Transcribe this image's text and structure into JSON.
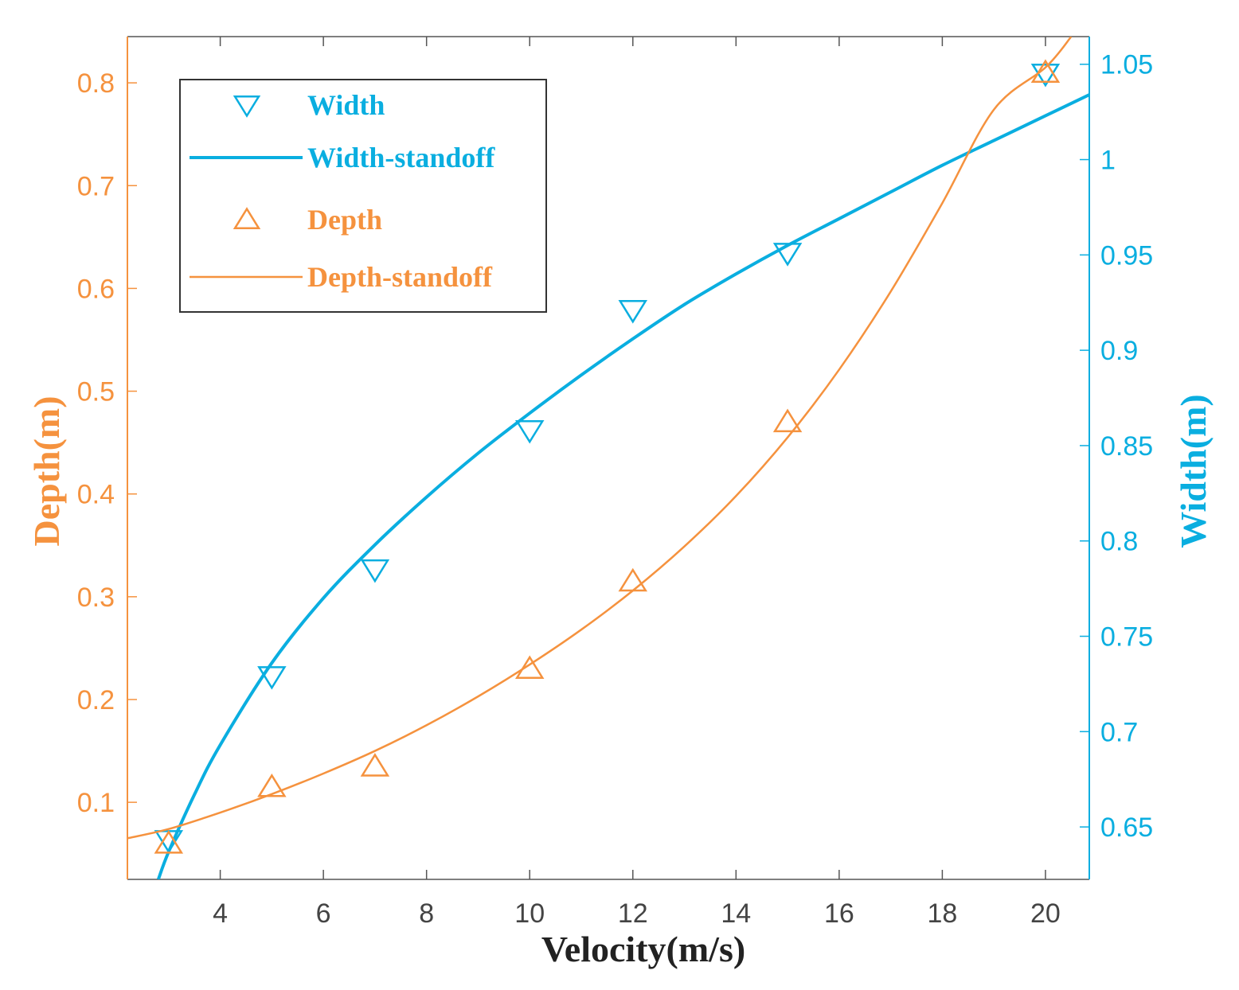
{
  "chart_data": {
    "type": "line",
    "xlabel": "Velocity(m/s)",
    "ylabel_left": "Depth(m)",
    "ylabel_right": "Width(m)",
    "xlim": [
      2.2,
      20.85
    ],
    "ylim_left": [
      0.025,
      0.845
    ],
    "ylim_right": [
      0.6225,
      1.0645
    ],
    "x_ticks": [
      4,
      6,
      8,
      10,
      12,
      14,
      16,
      18,
      20
    ],
    "y_left_ticks": [
      0.1,
      0.2,
      0.3,
      0.4,
      0.5,
      0.6,
      0.7,
      0.8
    ],
    "y_right_ticks": [
      0.65,
      0.7,
      0.75,
      0.8,
      0.85,
      0.9,
      0.95,
      1,
      1.05
    ],
    "series": [
      {
        "name": "Width",
        "kind": "markers",
        "marker": "triangle-down",
        "axis": "right",
        "x": [
          3,
          5,
          7,
          10,
          12,
          15,
          20
        ],
        "y": [
          0.643,
          0.729,
          0.785,
          0.858,
          0.921,
          0.951,
          1.045
        ]
      },
      {
        "name": "Width-standoff",
        "kind": "line",
        "axis": "right",
        "x": [
          2.8,
          3,
          3.5,
          4,
          5,
          6,
          7,
          8,
          9,
          10,
          11,
          12,
          13,
          14,
          15,
          16,
          17,
          18,
          19,
          20,
          20.85
        ],
        "y": [
          0.6225,
          0.637,
          0.667,
          0.693,
          0.736,
          0.77,
          0.798,
          0.823,
          0.846,
          0.867,
          0.887,
          0.906,
          0.924,
          0.94,
          0.955,
          0.969,
          0.983,
          0.997,
          1.01,
          1.023,
          1.034
        ]
      },
      {
        "name": "Depth",
        "kind": "markers",
        "marker": "triangle-up",
        "axis": "left",
        "x": [
          3,
          5,
          7,
          10,
          12,
          15,
          20
        ],
        "y": [
          0.06,
          0.115,
          0.135,
          0.23,
          0.315,
          0.47,
          0.81
        ]
      },
      {
        "name": "Depth-standoff",
        "kind": "line",
        "axis": "left",
        "x": [
          2.2,
          3,
          4,
          5,
          6,
          7,
          8,
          9,
          10,
          11,
          12,
          13,
          14,
          15,
          16,
          17,
          18,
          19,
          20,
          20.5
        ],
        "y": [
          0.065,
          0.074,
          0.09,
          0.108,
          0.128,
          0.15,
          0.175,
          0.203,
          0.234,
          0.268,
          0.306,
          0.349,
          0.398,
          0.455,
          0.521,
          0.597,
          0.683,
          0.774,
          0.815,
          0.845
        ]
      }
    ],
    "legend": {
      "position": "top-left",
      "entries": [
        "Width",
        "Width-standoff",
        "Depth",
        "Depth-standoff"
      ]
    }
  },
  "colors": {
    "depth": "#f5923e",
    "width": "#0aaee0",
    "axis": "#555555",
    "legend_border": "#333333"
  }
}
